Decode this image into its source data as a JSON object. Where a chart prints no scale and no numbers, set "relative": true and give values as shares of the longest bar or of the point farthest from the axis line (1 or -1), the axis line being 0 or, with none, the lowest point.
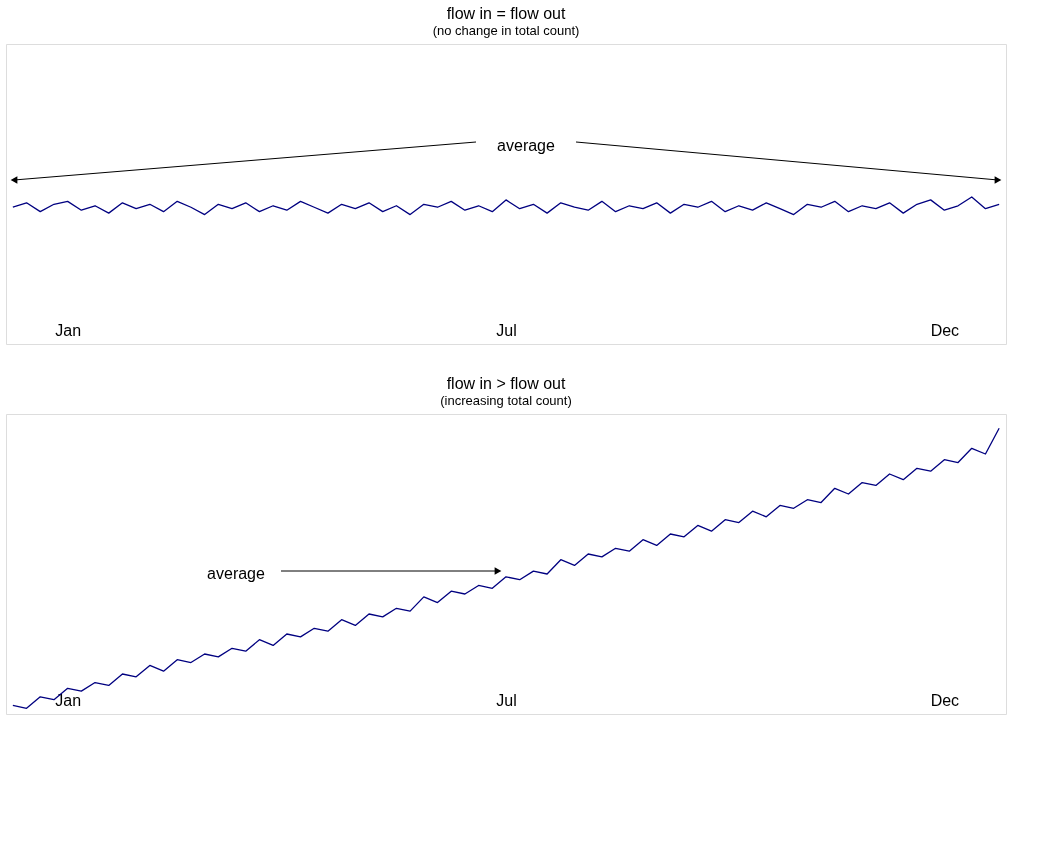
{
  "chart_data": [
    {
      "type": "line",
      "title": "flow in = flow out",
      "subtitle": "(no change in total count)",
      "relative": true,
      "grid": false,
      "annotations": [
        "average"
      ],
      "categories": [
        null,
        null,
        null,
        null,
        "Jan",
        null,
        null,
        null,
        null,
        null,
        null,
        null,
        null,
        null,
        null,
        null,
        null,
        null,
        null,
        null,
        null,
        null,
        null,
        null,
        null,
        null,
        null,
        null,
        null,
        null,
        null,
        null,
        null,
        null,
        null,
        null,
        "Jul",
        null,
        null,
        null,
        null,
        null,
        null,
        null,
        null,
        null,
        null,
        null,
        null,
        null,
        null,
        null,
        null,
        null,
        null,
        null,
        null,
        null,
        null,
        null,
        null,
        null,
        null,
        null,
        null,
        null,
        null,
        null,
        "Dec",
        null,
        null,
        null,
        null
      ],
      "series": [
        {
          "color": "#000080",
          "values": [
            0.93,
            0.96,
            0.9,
            0.95,
            0.97,
            0.91,
            0.94,
            0.89,
            0.96,
            0.92,
            0.95,
            0.9,
            0.97,
            0.93,
            0.88,
            0.95,
            0.92,
            0.96,
            0.9,
            0.94,
            0.91,
            0.97,
            0.93,
            0.89,
            0.95,
            0.92,
            0.96,
            0.9,
            0.94,
            0.88,
            0.95,
            0.93,
            0.97,
            0.91,
            0.94,
            0.9,
            0.98,
            0.92,
            0.95,
            0.89,
            0.96,
            0.93,
            0.91,
            0.97,
            0.9,
            0.94,
            0.92,
            0.96,
            0.89,
            0.95,
            0.93,
            0.97,
            0.9,
            0.94,
            0.91,
            0.96,
            0.92,
            0.88,
            0.95,
            0.93,
            0.97,
            0.9,
            0.94,
            0.92,
            0.96,
            0.89,
            0.95,
            0.98,
            0.91,
            0.94,
            1.0,
            0.92,
            0.95
          ]
        }
      ]
    },
    {
      "type": "line",
      "title": "flow in > flow out",
      "subtitle": "(increasing total count)",
      "relative": true,
      "grid": false,
      "annotations": [
        "average"
      ],
      "categories": [
        null,
        null,
        null,
        null,
        "Jan",
        null,
        null,
        null,
        null,
        null,
        null,
        null,
        null,
        null,
        null,
        null,
        null,
        null,
        null,
        null,
        null,
        null,
        null,
        null,
        null,
        null,
        null,
        null,
        null,
        null,
        null,
        null,
        null,
        null,
        null,
        null,
        "Jul",
        null,
        null,
        null,
        null,
        null,
        null,
        null,
        null,
        null,
        null,
        null,
        null,
        null,
        null,
        null,
        null,
        null,
        null,
        null,
        null,
        null,
        null,
        null,
        null,
        null,
        null,
        null,
        null,
        null,
        null,
        null,
        "Dec",
        null,
        null,
        null,
        null
      ],
      "series": [
        {
          "color": "#000080",
          "values": [
            0.03,
            0.02,
            0.06,
            0.05,
            0.09,
            0.08,
            0.11,
            0.1,
            0.14,
            0.13,
            0.17,
            0.15,
            0.19,
            0.18,
            0.21,
            0.2,
            0.23,
            0.22,
            0.26,
            0.24,
            0.28,
            0.27,
            0.3,
            0.29,
            0.33,
            0.31,
            0.35,
            0.34,
            0.37,
            0.36,
            0.41,
            0.39,
            0.43,
            0.42,
            0.45,
            0.44,
            0.48,
            0.47,
            0.5,
            0.49,
            0.54,
            0.52,
            0.56,
            0.55,
            0.58,
            0.57,
            0.61,
            0.59,
            0.63,
            0.62,
            0.66,
            0.64,
            0.68,
            0.67,
            0.71,
            0.69,
            0.73,
            0.72,
            0.75,
            0.74,
            0.79,
            0.77,
            0.81,
            0.8,
            0.84,
            0.82,
            0.86,
            0.85,
            0.89,
            0.88,
            0.93,
            0.91,
            1.0
          ]
        }
      ]
    }
  ]
}
